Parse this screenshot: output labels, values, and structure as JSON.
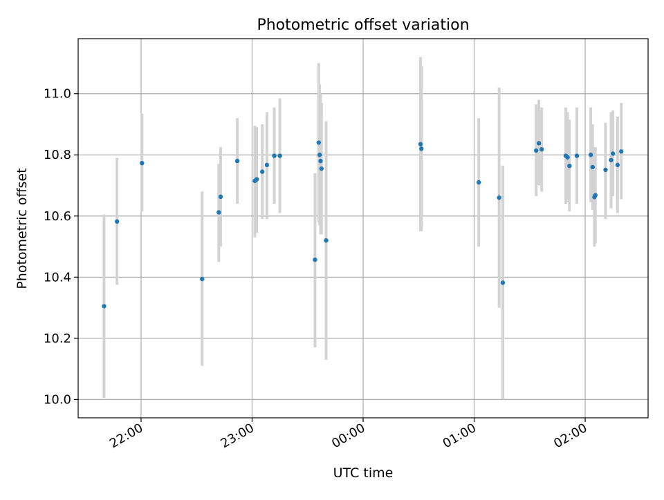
{
  "chart_data": {
    "type": "scatter",
    "title": "Photometric offset variation",
    "xlabel": "UTC time",
    "ylabel": "Photometric offset",
    "x_axis": "time",
    "x_ticks": [
      "22:00",
      "23:00",
      "00:00",
      "01:00",
      "02:00"
    ],
    "xlim": [
      "21:26",
      "02:34"
    ],
    "ylim": [
      9.94,
      11.18
    ],
    "y_ticks": [
      10.0,
      10.2,
      10.4,
      10.6,
      10.8,
      11.0
    ],
    "y_tick_labels": [
      "10.0",
      "10.2",
      "10.4",
      "10.6",
      "10.8",
      "11.0"
    ],
    "grid": true,
    "legend": "none",
    "colors": {
      "point": "#1f77b4",
      "error_bar": "#d3d3d3",
      "grid": "#b0b0b0"
    },
    "series": [
      {
        "points": [
          {
            "x": "21:40:00",
            "y": 10.305,
            "lo": 10.005,
            "hi": 10.605
          },
          {
            "x": "21:47:00",
            "y": 10.582,
            "lo": 10.375,
            "hi": 10.79
          },
          {
            "x": "22:00:30",
            "y": 10.773,
            "lo": 10.615,
            "hi": 10.935
          },
          {
            "x": "22:33:00",
            "y": 10.394,
            "lo": 10.11,
            "hi": 10.68
          },
          {
            "x": "22:42:00",
            "y": 10.612,
            "lo": 10.45,
            "hi": 10.77
          },
          {
            "x": "22:43:00",
            "y": 10.663,
            "lo": 10.5,
            "hi": 10.825
          },
          {
            "x": "22:52:00",
            "y": 10.78,
            "lo": 10.64,
            "hi": 10.92
          },
          {
            "x": "23:01:30",
            "y": 10.715,
            "lo": 10.53,
            "hi": 10.895
          },
          {
            "x": "23:02:30",
            "y": 10.72,
            "lo": 10.545,
            "hi": 10.89
          },
          {
            "x": "23:05:30",
            "y": 10.745,
            "lo": 10.59,
            "hi": 10.9
          },
          {
            "x": "23:08:00",
            "y": 10.767,
            "lo": 10.59,
            "hi": 10.94
          },
          {
            "x": "23:12:00",
            "y": 10.797,
            "lo": 10.64,
            "hi": 10.955
          },
          {
            "x": "23:15:00",
            "y": 10.797,
            "lo": 10.61,
            "hi": 10.985
          },
          {
            "x": "23:34:00",
            "y": 10.457,
            "lo": 10.17,
            "hi": 10.74
          },
          {
            "x": "23:36:00",
            "y": 10.84,
            "lo": 10.58,
            "hi": 11.1
          },
          {
            "x": "23:36:30",
            "y": 10.8,
            "lo": 10.57,
            "hi": 11.03
          },
          {
            "x": "23:37:00",
            "y": 10.78,
            "lo": 10.54,
            "hi": 11.0
          },
          {
            "x": "23:37:30",
            "y": 10.755,
            "lo": 10.54,
            "hi": 10.97
          },
          {
            "x": "23:40:00",
            "y": 10.52,
            "lo": 10.13,
            "hi": 10.91
          },
          {
            "x": "00:31:00",
            "y": 10.835,
            "lo": 10.55,
            "hi": 11.12
          },
          {
            "x": "00:31:30",
            "y": 10.82,
            "lo": 10.55,
            "hi": 11.09
          },
          {
            "x": "01:02:30",
            "y": 10.71,
            "lo": 10.5,
            "hi": 10.92
          },
          {
            "x": "01:13:30",
            "y": 10.66,
            "lo": 10.3,
            "hi": 11.02
          },
          {
            "x": "01:15:30",
            "y": 10.382,
            "lo": 10.0,
            "hi": 10.765
          },
          {
            "x": "01:33:30",
            "y": 10.814,
            "lo": 10.665,
            "hi": 10.965
          },
          {
            "x": "01:35:00",
            "y": 10.838,
            "lo": 10.7,
            "hi": 10.98
          },
          {
            "x": "01:36:30",
            "y": 10.818,
            "lo": 10.68,
            "hi": 10.955
          },
          {
            "x": "01:49:30",
            "y": 10.797,
            "lo": 10.64,
            "hi": 10.955
          },
          {
            "x": "01:50:30",
            "y": 10.792,
            "lo": 10.645,
            "hi": 10.94
          },
          {
            "x": "01:51:30",
            "y": 10.764,
            "lo": 10.615,
            "hi": 10.915
          },
          {
            "x": "01:55:30",
            "y": 10.797,
            "lo": 10.64,
            "hi": 10.955
          },
          {
            "x": "02:03:00",
            "y": 10.8,
            "lo": 10.645,
            "hi": 10.955
          },
          {
            "x": "02:04:00",
            "y": 10.76,
            "lo": 10.62,
            "hi": 10.9
          },
          {
            "x": "02:05:00",
            "y": 10.662,
            "lo": 10.5,
            "hi": 10.825
          },
          {
            "x": "02:05:30",
            "y": 10.668,
            "lo": 10.51,
            "hi": 10.825
          },
          {
            "x": "02:11:00",
            "y": 10.751,
            "lo": 10.59,
            "hi": 10.905
          },
          {
            "x": "02:14:00",
            "y": 10.783,
            "lo": 10.625,
            "hi": 10.94
          },
          {
            "x": "02:15:00",
            "y": 10.804,
            "lo": 10.665,
            "hi": 10.945
          },
          {
            "x": "02:17:30",
            "y": 10.767,
            "lo": 10.61,
            "hi": 10.925
          },
          {
            "x": "02:19:30",
            "y": 10.811,
            "lo": 10.655,
            "hi": 10.97
          }
        ]
      }
    ]
  }
}
